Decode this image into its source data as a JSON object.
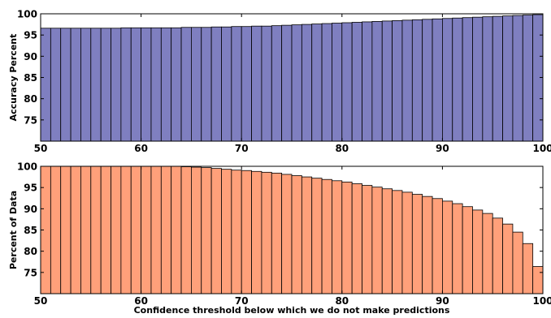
{
  "chart_data": [
    {
      "type": "bar",
      "ylabel": "Accuracy Percent",
      "xlabel": "",
      "xlim": [
        50,
        100
      ],
      "ylim": [
        70,
        100
      ],
      "x_ticks": [
        50,
        60,
        70,
        80,
        90,
        100
      ],
      "y_ticks": [
        75,
        80,
        85,
        90,
        95,
        100
      ],
      "bar_color": "#7f7fc0",
      "bar_edge_color": "#000000",
      "bins": [
        50,
        51,
        52,
        53,
        54,
        55,
        56,
        57,
        58,
        59,
        60,
        61,
        62,
        63,
        64,
        65,
        66,
        67,
        68,
        69,
        70,
        71,
        72,
        73,
        74,
        75,
        76,
        77,
        78,
        79,
        80,
        81,
        82,
        83,
        84,
        85,
        86,
        87,
        88,
        89,
        90,
        91,
        92,
        93,
        94,
        95,
        96,
        97,
        98,
        99
      ],
      "values": [
        96.6,
        96.6,
        96.6,
        96.6,
        96.6,
        96.6,
        96.6,
        96.6,
        96.7,
        96.7,
        96.7,
        96.7,
        96.7,
        96.7,
        96.8,
        96.8,
        96.8,
        96.9,
        96.9,
        97.0,
        97.0,
        97.1,
        97.1,
        97.2,
        97.3,
        97.4,
        97.5,
        97.6,
        97.7,
        97.8,
        97.9,
        98.0,
        98.1,
        98.2,
        98.3,
        98.4,
        98.5,
        98.6,
        98.7,
        98.8,
        98.9,
        99.0,
        99.1,
        99.2,
        99.3,
        99.4,
        99.5,
        99.6,
        99.7,
        99.8
      ]
    },
    {
      "type": "bar",
      "ylabel": "Percent of Data",
      "xlabel": "Confidence threshold below which we do not make predictions",
      "xlim": [
        50,
        100
      ],
      "ylim": [
        70,
        100
      ],
      "x_ticks": [
        50,
        60,
        70,
        80,
        90,
        100
      ],
      "y_ticks": [
        75,
        80,
        85,
        90,
        95,
        100
      ],
      "bar_color": "#ffa07a",
      "bar_edge_color": "#000000",
      "bins": [
        50,
        51,
        52,
        53,
        54,
        55,
        56,
        57,
        58,
        59,
        60,
        61,
        62,
        63,
        64,
        65,
        66,
        67,
        68,
        69,
        70,
        71,
        72,
        73,
        74,
        75,
        76,
        77,
        78,
        79,
        80,
        81,
        82,
        83,
        84,
        85,
        86,
        87,
        88,
        89,
        90,
        91,
        92,
        93,
        94,
        95,
        96,
        97,
        98,
        99
      ],
      "values": [
        100,
        100,
        100,
        100,
        100,
        100,
        100,
        100,
        100,
        100,
        100,
        100,
        100,
        100,
        99.9,
        99.8,
        99.7,
        99.5,
        99.3,
        99.1,
        99.0,
        98.8,
        98.6,
        98.4,
        98.1,
        97.8,
        97.5,
        97.2,
        96.9,
        96.6,
        96.3,
        95.9,
        95.5,
        95.1,
        94.7,
        94.3,
        93.9,
        93.4,
        92.9,
        92.4,
        91.8,
        91.2,
        90.5,
        89.7,
        88.9,
        87.8,
        86.4,
        84.5,
        81.8,
        76.4
      ]
    }
  ]
}
